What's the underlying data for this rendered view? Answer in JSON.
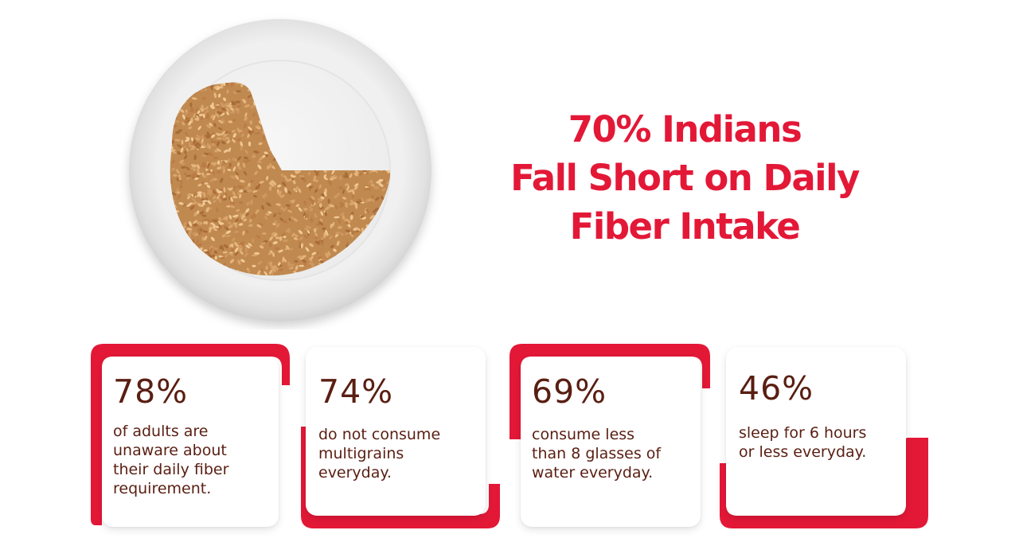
{
  "colors": {
    "accent": "#e31837",
    "text": "#5a1e12",
    "plate": "#f2f2f2",
    "grain": "#c9925a"
  },
  "headline": {
    "lines": [
      "70% Indians",
      "Fall Short on Daily",
      "Fiber Intake"
    ]
  },
  "image": {
    "icon": "plate-with-grains-icon"
  },
  "stats": [
    {
      "percent": "78%",
      "lines": [
        "of adults are",
        "unaware about",
        "their daily fiber",
        "requirement."
      ]
    },
    {
      "percent": "74%",
      "lines": [
        "do not consume",
        "multigrains",
        "everyday."
      ]
    },
    {
      "percent": "69%",
      "lines": [
        "consume less",
        "than 8 glasses of",
        "water everyday."
      ]
    },
    {
      "percent": "46%",
      "lines": [
        "sleep for 6 hours",
        "or less everyday."
      ]
    }
  ]
}
